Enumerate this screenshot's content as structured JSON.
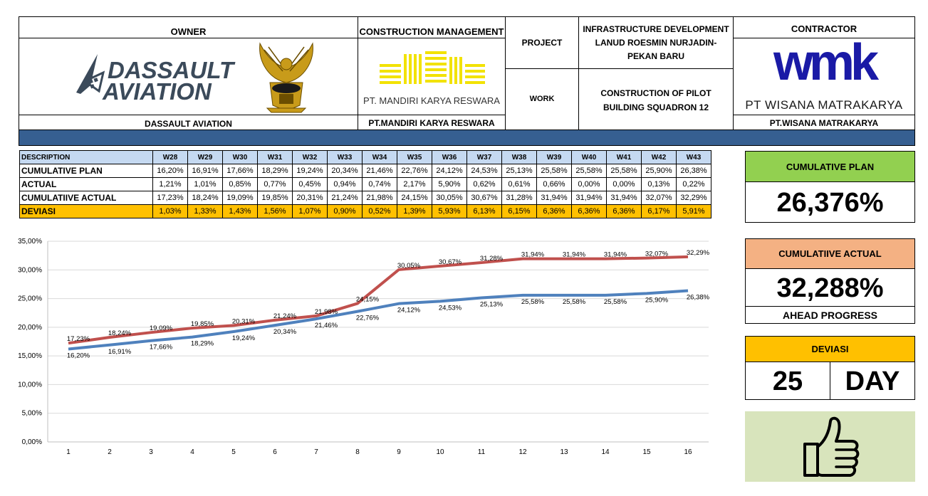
{
  "header": {
    "owner_label": "OWNER",
    "owner_logo_line1": "DASSAULT",
    "owner_logo_line2": "AVIATION",
    "owner_name": "DASSAULT AVIATION",
    "cm_label": "CONSTRUCTION MANAGEMENT",
    "cm_logo_text": "PT. MANDIRI KARYA RESWARA",
    "cm_name": "PT.MANDIRI KARYA RESWARA",
    "project_label": "PROJECT",
    "project_value": "INFRASTRUCTURE DEVELOPMENT LANUD ROESMIN NURJADIN-PEKAN BARU",
    "work_label": "WORK",
    "work_value": "CONSTRUCTION OF PILOT BUILDING SQUADRON 12",
    "contractor_label": "CONTRACTOR",
    "contractor_logo": "wmk",
    "contractor_logo_text": "PT WISANA MATRAKARYA",
    "contractor_name": "PT.WISANA MATRAKARYA"
  },
  "table": {
    "description_label": "DESCRIPTION",
    "weeks": [
      "W28",
      "W29",
      "W30",
      "W31",
      "W32",
      "W33",
      "W34",
      "W35",
      "W36",
      "W37",
      "W38",
      "W39",
      "W40",
      "W41",
      "W42",
      "W43"
    ],
    "rows": [
      {
        "label": "CUMULATIVE PLAN",
        "values": [
          "16,20%",
          "16,91%",
          "17,66%",
          "18,29%",
          "19,24%",
          "20,34%",
          "21,46%",
          "22,76%",
          "24,12%",
          "24,53%",
          "25,13%",
          "25,58%",
          "25,58%",
          "25,58%",
          "25,90%",
          "26,38%"
        ]
      },
      {
        "label": "ACTUAL",
        "values": [
          "1,21%",
          "1,01%",
          "0,85%",
          "0,77%",
          "0,45%",
          "0,94%",
          "0,74%",
          "2,17%",
          "5,90%",
          "0,62%",
          "0,61%",
          "0,66%",
          "0,00%",
          "0,00%",
          "0,13%",
          "0,22%"
        ]
      },
      {
        "label": "CUMULATIIVE ACTUAL",
        "values": [
          "17,23%",
          "18,24%",
          "19,09%",
          "19,85%",
          "20,31%",
          "21,24%",
          "21,98%",
          "24,15%",
          "30,05%",
          "30,67%",
          "31,28%",
          "31,94%",
          "31,94%",
          "31,94%",
          "32,07%",
          "32,29%"
        ]
      },
      {
        "label": "DEVIASI",
        "values": [
          "1,03%",
          "1,33%",
          "1,43%",
          "1,56%",
          "1,07%",
          "0,90%",
          "0,52%",
          "1,39%",
          "5,93%",
          "6,13%",
          "6,15%",
          "6,36%",
          "6,36%",
          "6,36%",
          "6,17%",
          "5,91%"
        ]
      }
    ]
  },
  "summary": {
    "plan_title": "CUMULATIVE PLAN",
    "plan_value": "26,376%",
    "actual_title": "CUMULATIIVE ACTUAL",
    "actual_value": "32,288%",
    "status_text": "AHEAD PROGRESS",
    "deviasi_title": "DEVIASI",
    "deviasi_number": "25",
    "deviasi_unit": "DAY",
    "thumb_icon": "thumbs-up-icon"
  },
  "colors": {
    "plan_header": "#92d050",
    "actual_header": "#f4b183",
    "deviasi_header": "#ffc000",
    "thumb_bg": "#d8e4bc",
    "band": "#365f91",
    "plan_line": "#4f81bd",
    "actual_line": "#c0504d",
    "table_head": "#c5d9f1"
  },
  "chart_data": {
    "type": "line",
    "x": [
      1,
      2,
      3,
      4,
      5,
      6,
      7,
      8,
      9,
      10,
      11,
      12,
      13,
      14,
      15,
      16
    ],
    "ylim": [
      0,
      35
    ],
    "y_ticks": [
      "0,00%",
      "5,00%",
      "10,00%",
      "15,00%",
      "20,00%",
      "25,00%",
      "30,00%",
      "35,00%"
    ],
    "y_tick_values": [
      0,
      5,
      10,
      15,
      20,
      25,
      30,
      35
    ],
    "grid": "horizontal",
    "series": [
      {
        "color": "#4f81bd",
        "values": [
          16.2,
          16.91,
          17.66,
          18.29,
          19.24,
          20.34,
          21.46,
          22.76,
          24.12,
          24.53,
          25.13,
          25.58,
          25.58,
          25.58,
          25.9,
          26.38
        ],
        "labels": [
          "16,20%",
          "16,91%",
          "17,66%",
          "18,29%",
          "19,24%",
          "20,34%",
          "21,46%",
          "22,76%",
          "24,12%",
          "24,53%",
          "25,13%",
          "25,58%",
          "25,58%",
          "25,58%",
          "25,90%",
          "26,38%"
        ]
      },
      {
        "color": "#c0504d",
        "values": [
          17.23,
          18.24,
          19.09,
          19.85,
          20.31,
          21.24,
          21.98,
          24.15,
          30.05,
          30.67,
          31.28,
          31.94,
          31.94,
          31.94,
          32.07,
          32.29
        ],
        "labels": [
          "17,23%",
          "18,24%",
          "19,09%",
          "19,85%",
          "20,31%",
          "21,24%",
          "21,98%",
          "24,15%",
          "30,05%",
          "30,67%",
          "31,28%",
          "31,94%",
          "31,94%",
          "31,94%",
          "32,07%",
          "32,29%"
        ]
      }
    ]
  }
}
